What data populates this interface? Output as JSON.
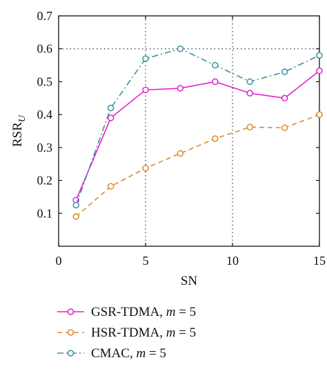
{
  "chart_data": {
    "type": "line",
    "title": "",
    "xlabel": "SN",
    "ylabel_main": "RSR",
    "ylabel_sub": "U",
    "xlim": [
      0,
      15
    ],
    "ylim": [
      0.0,
      0.7
    ],
    "x_ticks": [
      0,
      5,
      10,
      15
    ],
    "y_ticks": [
      0.1,
      0.2,
      0.3,
      0.4,
      0.5,
      0.6,
      0.7
    ],
    "x_tick_labels": [
      "0",
      "5",
      "10",
      "15"
    ],
    "y_tick_labels": [
      "0.1",
      "0.2",
      "0.3",
      "0.4",
      "0.5",
      "0.6",
      "0.7"
    ],
    "grid": "dotted vertical at x=5, 10; dotted horizontal at y=0.6",
    "legend_placement": "bottom-left, below plot",
    "x": [
      1,
      3,
      5,
      7,
      9,
      11,
      13,
      15
    ],
    "series": [
      {
        "name_main": "GSR-TDMA, ",
        "name_m": "m",
        "name_rest": " = 5",
        "color": "#e020d0",
        "dash": "solid",
        "values": [
          0.14,
          0.39,
          0.475,
          0.48,
          0.5,
          0.465,
          0.45,
          0.533
        ]
      },
      {
        "name_main": "HSR-TDMA, ",
        "name_m": "m",
        "name_rest": " = 5",
        "color": "#d98a2b",
        "dash": "dashed",
        "values": [
          0.09,
          0.182,
          0.237,
          0.282,
          0.327,
          0.362,
          0.36,
          0.4
        ]
      },
      {
        "name_main": "CMAC, ",
        "name_m": "m",
        "name_rest": " = 5",
        "color": "#3a8fa0",
        "dash": "dashdot",
        "values": [
          0.125,
          0.42,
          0.57,
          0.6,
          0.55,
          0.5,
          0.53,
          0.58
        ]
      }
    ]
  }
}
